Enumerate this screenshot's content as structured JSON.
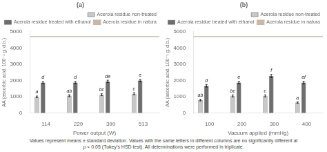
{
  "chart_data": [
    {
      "type": "bar",
      "title": "(a)",
      "xlabel": "Power output (W)",
      "ylabel": "AA (ascorbic acid. 100⁻¹ g. d.b.)",
      "categories": [
        "114",
        "229",
        "399",
        "513"
      ],
      "series": [
        {
          "name": "Acerola residue non-treated",
          "color": "#c8c8c8",
          "values": [
            1000,
            1070,
            1130,
            1190
          ],
          "errors": [
            50,
            60,
            60,
            60
          ],
          "annotations": [
            "a",
            "ab",
            "bc",
            "c"
          ]
        },
        {
          "name": "Acerola residue treated with ethanol",
          "color": "#6e6e6e",
          "values": [
            1880,
            1880,
            1950,
            2000
          ],
          "errors": [
            60,
            60,
            70,
            70
          ],
          "annotations": [
            "d",
            "d",
            "de",
            "e"
          ]
        },
        {
          "name": "Acerola residue in natura",
          "type": "hline",
          "color": "#c8b8a8",
          "value": 4700
        }
      ],
      "ylim": [
        0,
        5000
      ],
      "yticks": [
        0,
        1000,
        2000,
        3000,
        4000,
        5000
      ],
      "grid": false,
      "legend": "upper right"
    },
    {
      "type": "bar",
      "title": "(b)",
      "xlabel": "Vacuum applied (mmHg)",
      "ylabel": "AA (ascorbic acid. 100⁻¹ g. d.b.)",
      "categories": [
        "100",
        "200",
        "300",
        "400"
      ],
      "series": [
        {
          "name": "Acerola residue non-treated",
          "color": "#c8c8c8",
          "values": [
            800,
            1060,
            1060,
            650
          ],
          "errors": [
            50,
            60,
            60,
            40
          ],
          "annotations": [
            "ab",
            "bc",
            "c",
            "a"
          ]
        },
        {
          "name": "Acerola residue treated with ethanol",
          "color": "#6e6e6e",
          "values": [
            1680,
            1880,
            2280,
            1880
          ],
          "errors": [
            80,
            70,
            90,
            80
          ],
          "annotations": [
            "d",
            "e",
            "f",
            "ef"
          ]
        },
        {
          "name": "Acerola residue in natura",
          "type": "hline",
          "color": "#c8b8a8",
          "value": 4700
        }
      ],
      "ylim": [
        0,
        5000
      ],
      "yticks": [
        0,
        1000,
        2000,
        3000,
        4000,
        5000
      ],
      "grid": false,
      "legend": "upper right"
    }
  ],
  "annotations": [
    "Values represent means ± standard deviation. Values with the same letters in different columns are no significantly different at",
    "p < 0.05 (Tukey’s HSD test). All determinations were performed in triplicate."
  ]
}
